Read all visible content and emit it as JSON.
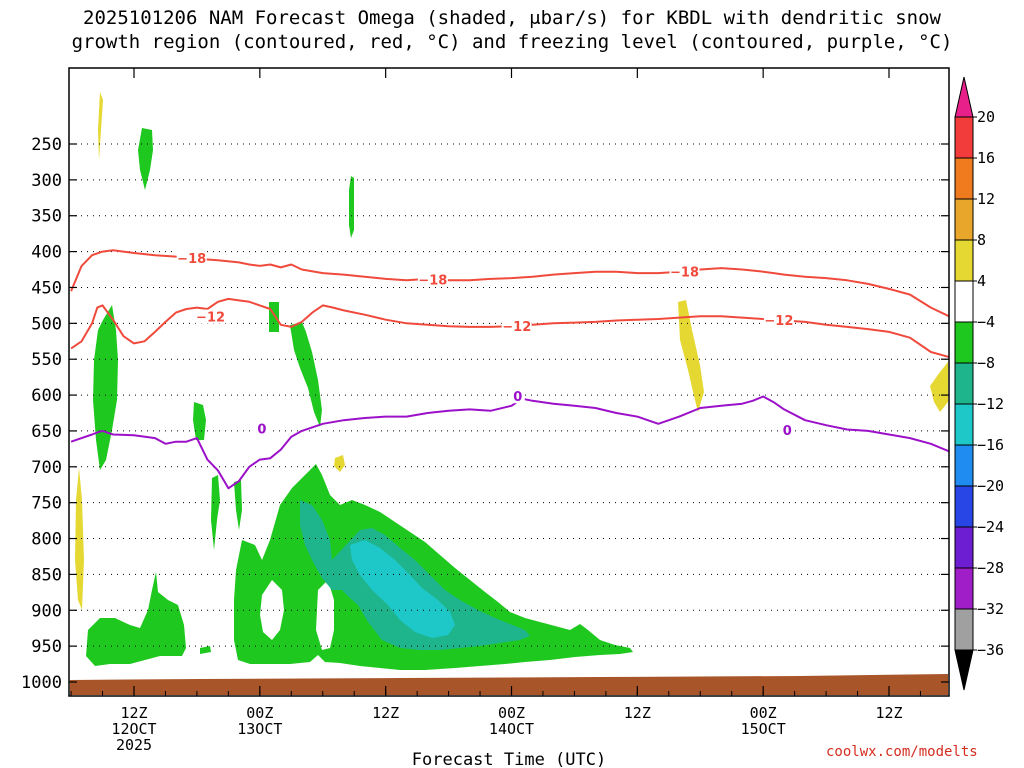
{
  "title": {
    "line1": "2025101206 NAM Forecast Omega (shaded, μbar/s) for KBDL with dendritic snow",
    "line2": "growth region (contoured, red, °C) and freezing level (contoured, purple, °C)"
  },
  "watermark": "coolwx.com/modelts",
  "chart_data": {
    "type": "time-height cross section",
    "xlabel": "Forecast Time (UTC)",
    "yaxis": {
      "scale": "pressure (hPa), inverted",
      "range": [
        1030,
        190
      ],
      "ticks": [
        250,
        300,
        350,
        400,
        450,
        500,
        550,
        600,
        650,
        700,
        750,
        800,
        850,
        900,
        950,
        1000
      ],
      "grid": "dotted at each tick"
    },
    "xaxis": {
      "range_hours": [
        6,
        90
      ],
      "ticks": [
        {
          "hour": 12,
          "lines": [
            "12Z",
            "12OCT",
            "2025"
          ]
        },
        {
          "hour": 24,
          "lines": [
            "00Z",
            "13OCT"
          ]
        },
        {
          "hour": 36,
          "lines": [
            "12Z"
          ]
        },
        {
          "hour": 48,
          "lines": [
            "00Z",
            "14OCT"
          ]
        },
        {
          "hour": 60,
          "lines": [
            "12Z"
          ]
        },
        {
          "hour": 72,
          "lines": [
            "00Z",
            "15OCT"
          ]
        },
        {
          "hour": 84,
          "lines": [
            "12Z"
          ]
        }
      ]
    },
    "colorbar": {
      "levels": [
        {
          "label": "20",
          "color": "#e8208a"
        },
        {
          "label": "16",
          "color": "#f23c3c"
        },
        {
          "label": "12",
          "color": "#f07a1e"
        },
        {
          "label": "8",
          "color": "#e8a62a"
        },
        {
          "label": "4",
          "color": "#e6d832"
        },
        {
          "label": "−4",
          "color": "#ffffff"
        },
        {
          "label": "−8",
          "color": "#1ec81e"
        },
        {
          "label": "−12",
          "color": "#1eb48c"
        },
        {
          "label": "−16",
          "color": "#1ec8c8"
        },
        {
          "label": "−20",
          "color": "#1e8cf0"
        },
        {
          "label": "−24",
          "color": "#2846e6"
        },
        {
          "label": "−28",
          "color": "#6e1ed2"
        },
        {
          "label": "−32",
          "color": "#a01ec8"
        },
        {
          "label": "−36",
          "color": "#a0a0a0"
        }
      ],
      "top_arrow_color": "#e8208a",
      "bottom_arrow_color": "#000000"
    },
    "contours": [
      {
        "label": "−18",
        "color": "#f04a3c",
        "points": [
          [
            6,
            455
          ],
          [
            7,
            420
          ],
          [
            8,
            405
          ],
          [
            9,
            400
          ],
          [
            10,
            398
          ],
          [
            12,
            402
          ],
          [
            14,
            405
          ],
          [
            16,
            407
          ],
          [
            18,
            410
          ],
          [
            20,
            412
          ],
          [
            22,
            415
          ],
          [
            23,
            418
          ],
          [
            24,
            420
          ],
          [
            25,
            418
          ],
          [
            26,
            422
          ],
          [
            27,
            418
          ],
          [
            28,
            425
          ],
          [
            30,
            430
          ],
          [
            32,
            432
          ],
          [
            34,
            435
          ],
          [
            36,
            438
          ],
          [
            38,
            440
          ],
          [
            40,
            438
          ],
          [
            42,
            440
          ],
          [
            44,
            440
          ],
          [
            46,
            438
          ],
          [
            48,
            437
          ],
          [
            50,
            435
          ],
          [
            52,
            432
          ],
          [
            54,
            430
          ],
          [
            56,
            428
          ],
          [
            58,
            428
          ],
          [
            60,
            430
          ],
          [
            62,
            430
          ],
          [
            64,
            428
          ],
          [
            66,
            425
          ],
          [
            68,
            423
          ],
          [
            70,
            425
          ],
          [
            72,
            428
          ],
          [
            73,
            430
          ],
          [
            74,
            432
          ],
          [
            76,
            435
          ],
          [
            78,
            437
          ],
          [
            80,
            440
          ],
          [
            82,
            445
          ],
          [
            84,
            452
          ],
          [
            86,
            460
          ],
          [
            88,
            478
          ],
          [
            90,
            492
          ]
        ],
        "label_positions": [
          [
            17.5,
            410
          ],
          [
            40.5,
            440
          ],
          [
            64.5,
            429
          ]
        ]
      },
      {
        "label": "−12",
        "color": "#f04a3c",
        "points": [
          [
            6,
            535
          ],
          [
            7,
            525
          ],
          [
            8,
            500
          ],
          [
            8.5,
            478
          ],
          [
            9,
            475
          ],
          [
            10,
            495
          ],
          [
            11,
            518
          ],
          [
            12,
            528
          ],
          [
            13,
            525
          ],
          [
            14,
            512
          ],
          [
            15,
            498
          ],
          [
            16,
            485
          ],
          [
            17,
            480
          ],
          [
            18,
            478
          ],
          [
            19,
            480
          ],
          [
            20,
            470
          ],
          [
            21,
            466
          ],
          [
            22,
            468
          ],
          [
            23,
            470
          ],
          [
            24,
            475
          ],
          [
            25,
            480
          ],
          [
            26,
            502
          ],
          [
            27,
            505
          ],
          [
            28,
            498
          ],
          [
            29,
            485
          ],
          [
            30,
            475
          ],
          [
            31,
            478
          ],
          [
            32,
            482
          ],
          [
            34,
            488
          ],
          [
            36,
            495
          ],
          [
            38,
            500
          ],
          [
            40,
            502
          ],
          [
            42,
            504
          ],
          [
            44,
            505
          ],
          [
            46,
            505
          ],
          [
            48,
            504
          ],
          [
            50,
            502
          ],
          [
            52,
            500
          ],
          [
            54,
            499
          ],
          [
            56,
            498
          ],
          [
            58,
            496
          ],
          [
            60,
            495
          ],
          [
            62,
            494
          ],
          [
            64,
            492
          ],
          [
            66,
            490
          ],
          [
            68,
            490
          ],
          [
            70,
            492
          ],
          [
            72,
            494
          ],
          [
            74,
            496
          ],
          [
            76,
            498
          ],
          [
            78,
            502
          ],
          [
            80,
            505
          ],
          [
            82,
            508
          ],
          [
            84,
            512
          ],
          [
            86,
            520
          ],
          [
            88,
            540
          ],
          [
            90,
            548
          ]
        ],
        "label_positions": [
          [
            19.3,
            492
          ],
          [
            73.5,
            497
          ],
          [
            48.5,
            505
          ]
        ]
      },
      {
        "label": "0",
        "color": "#9b10c8",
        "points": [
          [
            6,
            665
          ],
          [
            7,
            660
          ],
          [
            8,
            655
          ],
          [
            8.5,
            652
          ],
          [
            9,
            650
          ],
          [
            10,
            655
          ],
          [
            12,
            656
          ],
          [
            14,
            660
          ],
          [
            15,
            668
          ],
          [
            16,
            665
          ],
          [
            17,
            665
          ],
          [
            18,
            660
          ],
          [
            19,
            690
          ],
          [
            20,
            705
          ],
          [
            21,
            730
          ],
          [
            22,
            720
          ],
          [
            23,
            700
          ],
          [
            24,
            690
          ],
          [
            25,
            688
          ],
          [
            26,
            676
          ],
          [
            27,
            658
          ],
          [
            28,
            650
          ],
          [
            30,
            640
          ],
          [
            32,
            635
          ],
          [
            34,
            632
          ],
          [
            36,
            630
          ],
          [
            38,
            630
          ],
          [
            40,
            625
          ],
          [
            42,
            622
          ],
          [
            44,
            620
          ],
          [
            46,
            622
          ],
          [
            48,
            615
          ],
          [
            49,
            605
          ],
          [
            50,
            608
          ],
          [
            52,
            612
          ],
          [
            54,
            615
          ],
          [
            56,
            618
          ],
          [
            58,
            625
          ],
          [
            60,
            630
          ],
          [
            62,
            640
          ],
          [
            64,
            630
          ],
          [
            66,
            618
          ],
          [
            68,
            615
          ],
          [
            70,
            612
          ],
          [
            71,
            608
          ],
          [
            72,
            602
          ],
          [
            73,
            610
          ],
          [
            74,
            620
          ],
          [
            76,
            635
          ],
          [
            78,
            642
          ],
          [
            80,
            648
          ],
          [
            82,
            650
          ],
          [
            84,
            655
          ],
          [
            86,
            660
          ],
          [
            88,
            668
          ],
          [
            90,
            680
          ]
        ],
        "label_positions": [
          [
            24.2,
            648
          ],
          [
            48.6,
            603
          ],
          [
            74.3,
            650
          ]
        ]
      }
    ]
  }
}
